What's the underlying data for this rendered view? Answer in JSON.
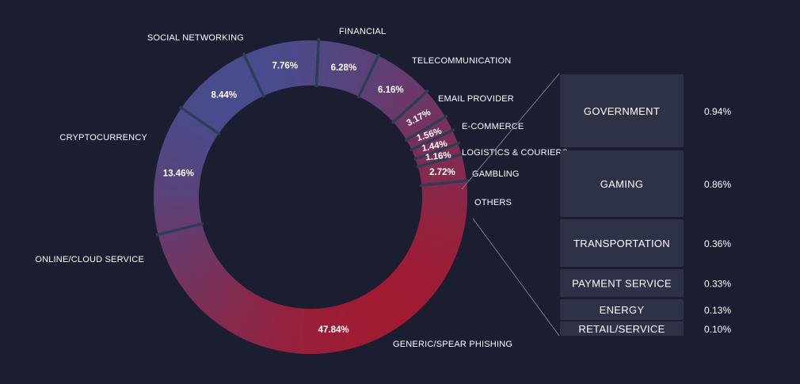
{
  "chart_data": {
    "type": "pie",
    "subtype": "donut-with-breakdown",
    "colors": {
      "background": "#1b1d31",
      "start": "#2f5aa6",
      "end": "#b50f1c",
      "divider": "#2c3d57",
      "box": "#2e3247"
    },
    "slices": [
      {
        "label": "FINANCIAL",
        "value": 6.28,
        "display": "6.28%"
      },
      {
        "label": "TELECOMMUNICATION",
        "value": 6.16,
        "display": "6.16%"
      },
      {
        "label": "EMAIL PROVIDER",
        "value": 3.17,
        "display": "3.17%"
      },
      {
        "label": "E-COMMERCE",
        "value": 1.56,
        "display": "1.56%"
      },
      {
        "label": "LOGISTICS & COURIERS",
        "value": 1.44,
        "display": "1.44%"
      },
      {
        "label": "GAMBLING",
        "value": 1.16,
        "display": "1.16%"
      },
      {
        "label": "OTHERS",
        "value": 2.72,
        "display": "2.72%"
      },
      {
        "label": "GENERIC/SPEAR PHISHING",
        "value": 47.84,
        "display": "47.84%"
      },
      {
        "label": "ONLINE/CLOUD SERVICE",
        "value": 13.46,
        "display": "13.46%"
      },
      {
        "label": "CRYPTOCURRENCY",
        "value": 8.44,
        "display": "8.44%"
      },
      {
        "label": "SOCIAL NETWORKING",
        "value": 7.76,
        "display": "7.76%"
      }
    ],
    "others_breakdown": [
      {
        "label": "GOVERNMENT",
        "value": 0.94,
        "display": "0.94%"
      },
      {
        "label": "GAMING",
        "value": 0.86,
        "display": "0.86%"
      },
      {
        "label": "TRANSPORTATION",
        "value": 0.36,
        "display": "0.36%"
      },
      {
        "label": "PAYMENT SERVICE",
        "value": 0.33,
        "display": "0.33%"
      },
      {
        "label": "ENERGY",
        "value": 0.13,
        "display": "0.13%"
      },
      {
        "label": "RETAIL/SERVICE",
        "value": 0.1,
        "display": "0.10%"
      }
    ]
  }
}
